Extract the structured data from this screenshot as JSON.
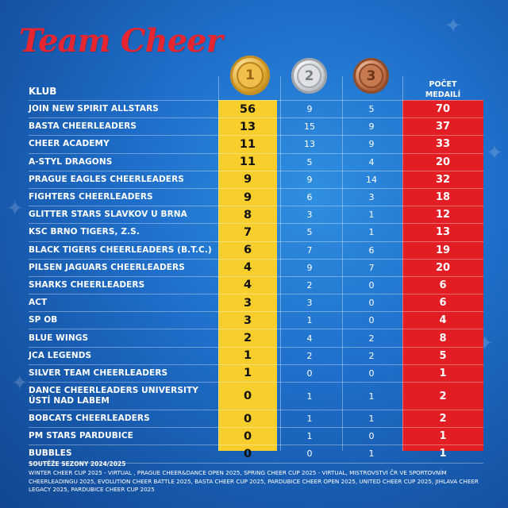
{
  "title": "Team Cheer",
  "medals": {
    "gold": "1",
    "silver": "2",
    "bronze": "3"
  },
  "header": {
    "club": "KLUB",
    "total_line1": "POČET",
    "total_line2": "MEDAILÍ"
  },
  "rows": [
    {
      "club": "JOIN NEW SPIRIT ALLSTARS",
      "gold": "56",
      "silver": "9",
      "bronze": "5",
      "total": "70"
    },
    {
      "club": "BASTA CHEERLEADERS",
      "gold": "13",
      "silver": "15",
      "bronze": "9",
      "total": "37"
    },
    {
      "club": "CHEER ACADEMY",
      "gold": "11",
      "silver": "13",
      "bronze": "9",
      "total": "33"
    },
    {
      "club": "A-STYL DRAGONS",
      "gold": "11",
      "silver": "5",
      "bronze": "4",
      "total": "20"
    },
    {
      "club": "PRAGUE EAGLES CHEERLEADERS",
      "gold": "9",
      "silver": "9",
      "bronze": "14",
      "total": "32"
    },
    {
      "club": "FIGHTERS CHEERLEADERS",
      "gold": "9",
      "silver": "6",
      "bronze": "3",
      "total": "18"
    },
    {
      "club": "GLITTER STARS SLAVKOV U BRNA",
      "gold": "8",
      "silver": "3",
      "bronze": "1",
      "total": "12"
    },
    {
      "club": "KSC BRNO TIGERS, Z.S.",
      "gold": "7",
      "silver": "5",
      "bronze": "1",
      "total": "13"
    },
    {
      "club": "BLACK TIGERS CHEERLEADERS (B.T.C.)",
      "gold": "6",
      "silver": "7",
      "bronze": "6",
      "total": "19"
    },
    {
      "club": "PILSEN JAGUARS CHEERLEADERS",
      "gold": "4",
      "silver": "9",
      "bronze": "7",
      "total": "20"
    },
    {
      "club": "SHARKS CHEERLEADERS",
      "gold": "4",
      "silver": "2",
      "bronze": "0",
      "total": "6"
    },
    {
      "club": "ACT",
      "gold": "3",
      "silver": "3",
      "bronze": "0",
      "total": "6"
    },
    {
      "club": "SP OB",
      "gold": "3",
      "silver": "1",
      "bronze": "0",
      "total": "4"
    },
    {
      "club": "BLUE WINGS",
      "gold": "2",
      "silver": "4",
      "bronze": "2",
      "total": "8"
    },
    {
      "club": "JCA LEGENDS",
      "gold": "1",
      "silver": "2",
      "bronze": "2",
      "total": "5"
    },
    {
      "club": "SILVER TEAM CHEERLEADERS",
      "gold": "1",
      "silver": "0",
      "bronze": "0",
      "total": "1"
    },
    {
      "club": "DANCE CHEERLEADERS UNIVERSITY ÚSTÍ NAD LABEM",
      "gold": "0",
      "silver": "1",
      "bronze": "1",
      "total": "2"
    },
    {
      "club": "BOBCATS CHEERLEADERS",
      "gold": "0",
      "silver": "1",
      "bronze": "1",
      "total": "2"
    },
    {
      "club": "PM STARS PARDUBICE",
      "gold": "0",
      "silver": "1",
      "bronze": "0",
      "total": "1"
    },
    {
      "club": "BUBBLES",
      "gold": "0",
      "silver": "0",
      "bronze": "1",
      "total": "1"
    }
  ],
  "footer": {
    "title": "SOUTĚŽE SEZONY 2024/2025",
    "text": "WINTER CHEER CUP 2025 - VIRTUAL , PRAGUE CHEER&DANCE OPEN 2025, SPRING CHEER CUP 2025 - VIRTUAL, MISTROVSTVÍ ČR VE SPORTOVNÍM CHEERLEADINGU 2025, EVOLUTION CHEER BATTLE 2025, BASTA CHEER CUP 2025, PARDUBICE CHEER OPEN 2025, UNITED CHEER CUP 2025, JIHLAVA CHEER LEGACY 2025, PARDUBICE CHEER CUP 2025"
  },
  "colors": {
    "gold_column": "#f7ce2c",
    "total_column": "#e31d24",
    "title": "#e52530",
    "background": "#1f6fcb"
  }
}
